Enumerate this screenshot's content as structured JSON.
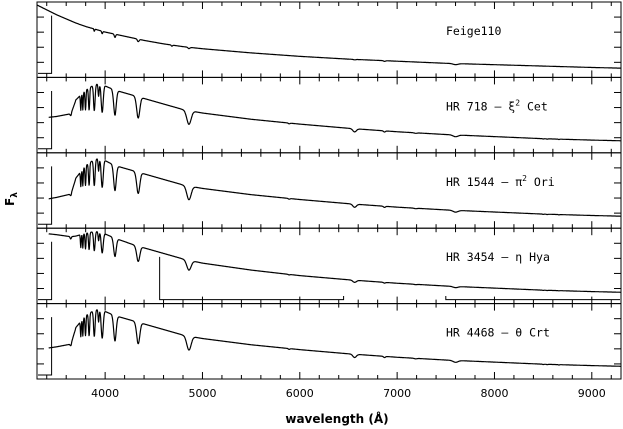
{
  "chart_data": {
    "type": "line",
    "title": "",
    "xlabel": "wavelength (Å)",
    "ylabel": "F",
    "ylabel_subscript": "λ",
    "xlim": [
      3300,
      9300
    ],
    "xticks": [
      4000,
      5000,
      6000,
      7000,
      8000,
      9000
    ],
    "xtick_labels": [
      "4000",
      "5000",
      "6000",
      "7000",
      "8000",
      "9000"
    ],
    "grid": false,
    "legend": "none",
    "series": [
      {
        "label_parts": [
          "Feige110"
        ],
        "label_sup": "",
        "kind": "hot",
        "x": [
          3300,
          3400,
          3500,
          3600,
          3700,
          3800,
          3900,
          4000,
          4200,
          4400,
          4600,
          4800,
          5000,
          5500,
          6000,
          6500,
          7000,
          7500,
          8000,
          8500,
          9000,
          9300
        ],
        "y": [
          1.0,
          0.93,
          0.86,
          0.8,
          0.74,
          0.69,
          0.65,
          0.61,
          0.55,
          0.49,
          0.44,
          0.4,
          0.37,
          0.31,
          0.26,
          0.22,
          0.19,
          0.16,
          0.14,
          0.12,
          0.1,
          0.09
        ],
        "mask": [
          [
            3310,
            3450
          ]
        ]
      },
      {
        "label_parts": [
          "HR 718 – ξ",
          " Cet"
        ],
        "label_sup": "2",
        "kind": "a-type",
        "x": [
          3300,
          3500,
          3650,
          3700,
          3800,
          3900,
          4000,
          4100,
          4300,
          4500,
          4800,
          5000,
          5500,
          6000,
          6500,
          7000,
          7500,
          8000,
          8500,
          9000,
          9300
        ],
        "y": [
          0.45,
          0.48,
          0.52,
          0.72,
          0.86,
          0.95,
          0.92,
          0.86,
          0.78,
          0.7,
          0.58,
          0.53,
          0.44,
          0.37,
          0.31,
          0.26,
          0.22,
          0.19,
          0.16,
          0.14,
          0.13
        ],
        "mask": [
          [
            3310,
            3450
          ]
        ]
      },
      {
        "label_parts": [
          "HR 1544 – π",
          " Ori"
        ],
        "label_sup": "2",
        "kind": "a-type",
        "x": [
          3300,
          3500,
          3650,
          3700,
          3800,
          3900,
          4000,
          4100,
          4300,
          4500,
          4800,
          5000,
          5500,
          6000,
          6500,
          7000,
          7500,
          8000,
          8500,
          9000,
          9300
        ],
        "y": [
          0.35,
          0.4,
          0.45,
          0.68,
          0.86,
          0.96,
          0.93,
          0.86,
          0.78,
          0.7,
          0.58,
          0.53,
          0.44,
          0.37,
          0.31,
          0.26,
          0.22,
          0.19,
          0.16,
          0.14,
          0.13
        ],
        "mask": [
          [
            3310,
            3450
          ]
        ]
      },
      {
        "label_parts": [
          "HR 3454 – η",
          " Hya"
        ],
        "label_sup": "",
        "kind": "b-type",
        "x": [
          3300,
          3500,
          3650,
          3700,
          3800,
          3900,
          4000,
          4100,
          4300,
          4500,
          4800,
          5000,
          5500,
          6000,
          6500,
          7000,
          7500,
          8000,
          8500,
          9000,
          9300
        ],
        "y": [
          0.98,
          0.95,
          0.92,
          0.93,
          0.97,
          1.0,
          0.96,
          0.9,
          0.8,
          0.72,
          0.6,
          0.54,
          0.44,
          0.36,
          0.3,
          0.25,
          0.21,
          0.18,
          0.15,
          0.13,
          0.12
        ],
        "mask": [
          [
            3310,
            3450
          ],
          [
            4560,
            6450
          ],
          [
            7500,
            9300
          ]
        ]
      },
      {
        "label_parts": [
          "HR 4468 – θ",
          " Crt"
        ],
        "label_sup": "",
        "kind": "a-type",
        "x": [
          3300,
          3500,
          3650,
          3700,
          3800,
          3900,
          4000,
          4100,
          4300,
          4500,
          4800,
          5000,
          5500,
          6000,
          6500,
          7000,
          7500,
          8000,
          8500,
          9000,
          9300
        ],
        "y": [
          0.38,
          0.42,
          0.46,
          0.7,
          0.87,
          0.96,
          0.93,
          0.87,
          0.79,
          0.71,
          0.59,
          0.54,
          0.45,
          0.38,
          0.32,
          0.27,
          0.23,
          0.2,
          0.17,
          0.15,
          0.14
        ],
        "mask": [
          [
            3310,
            3450
          ]
        ]
      }
    ]
  }
}
